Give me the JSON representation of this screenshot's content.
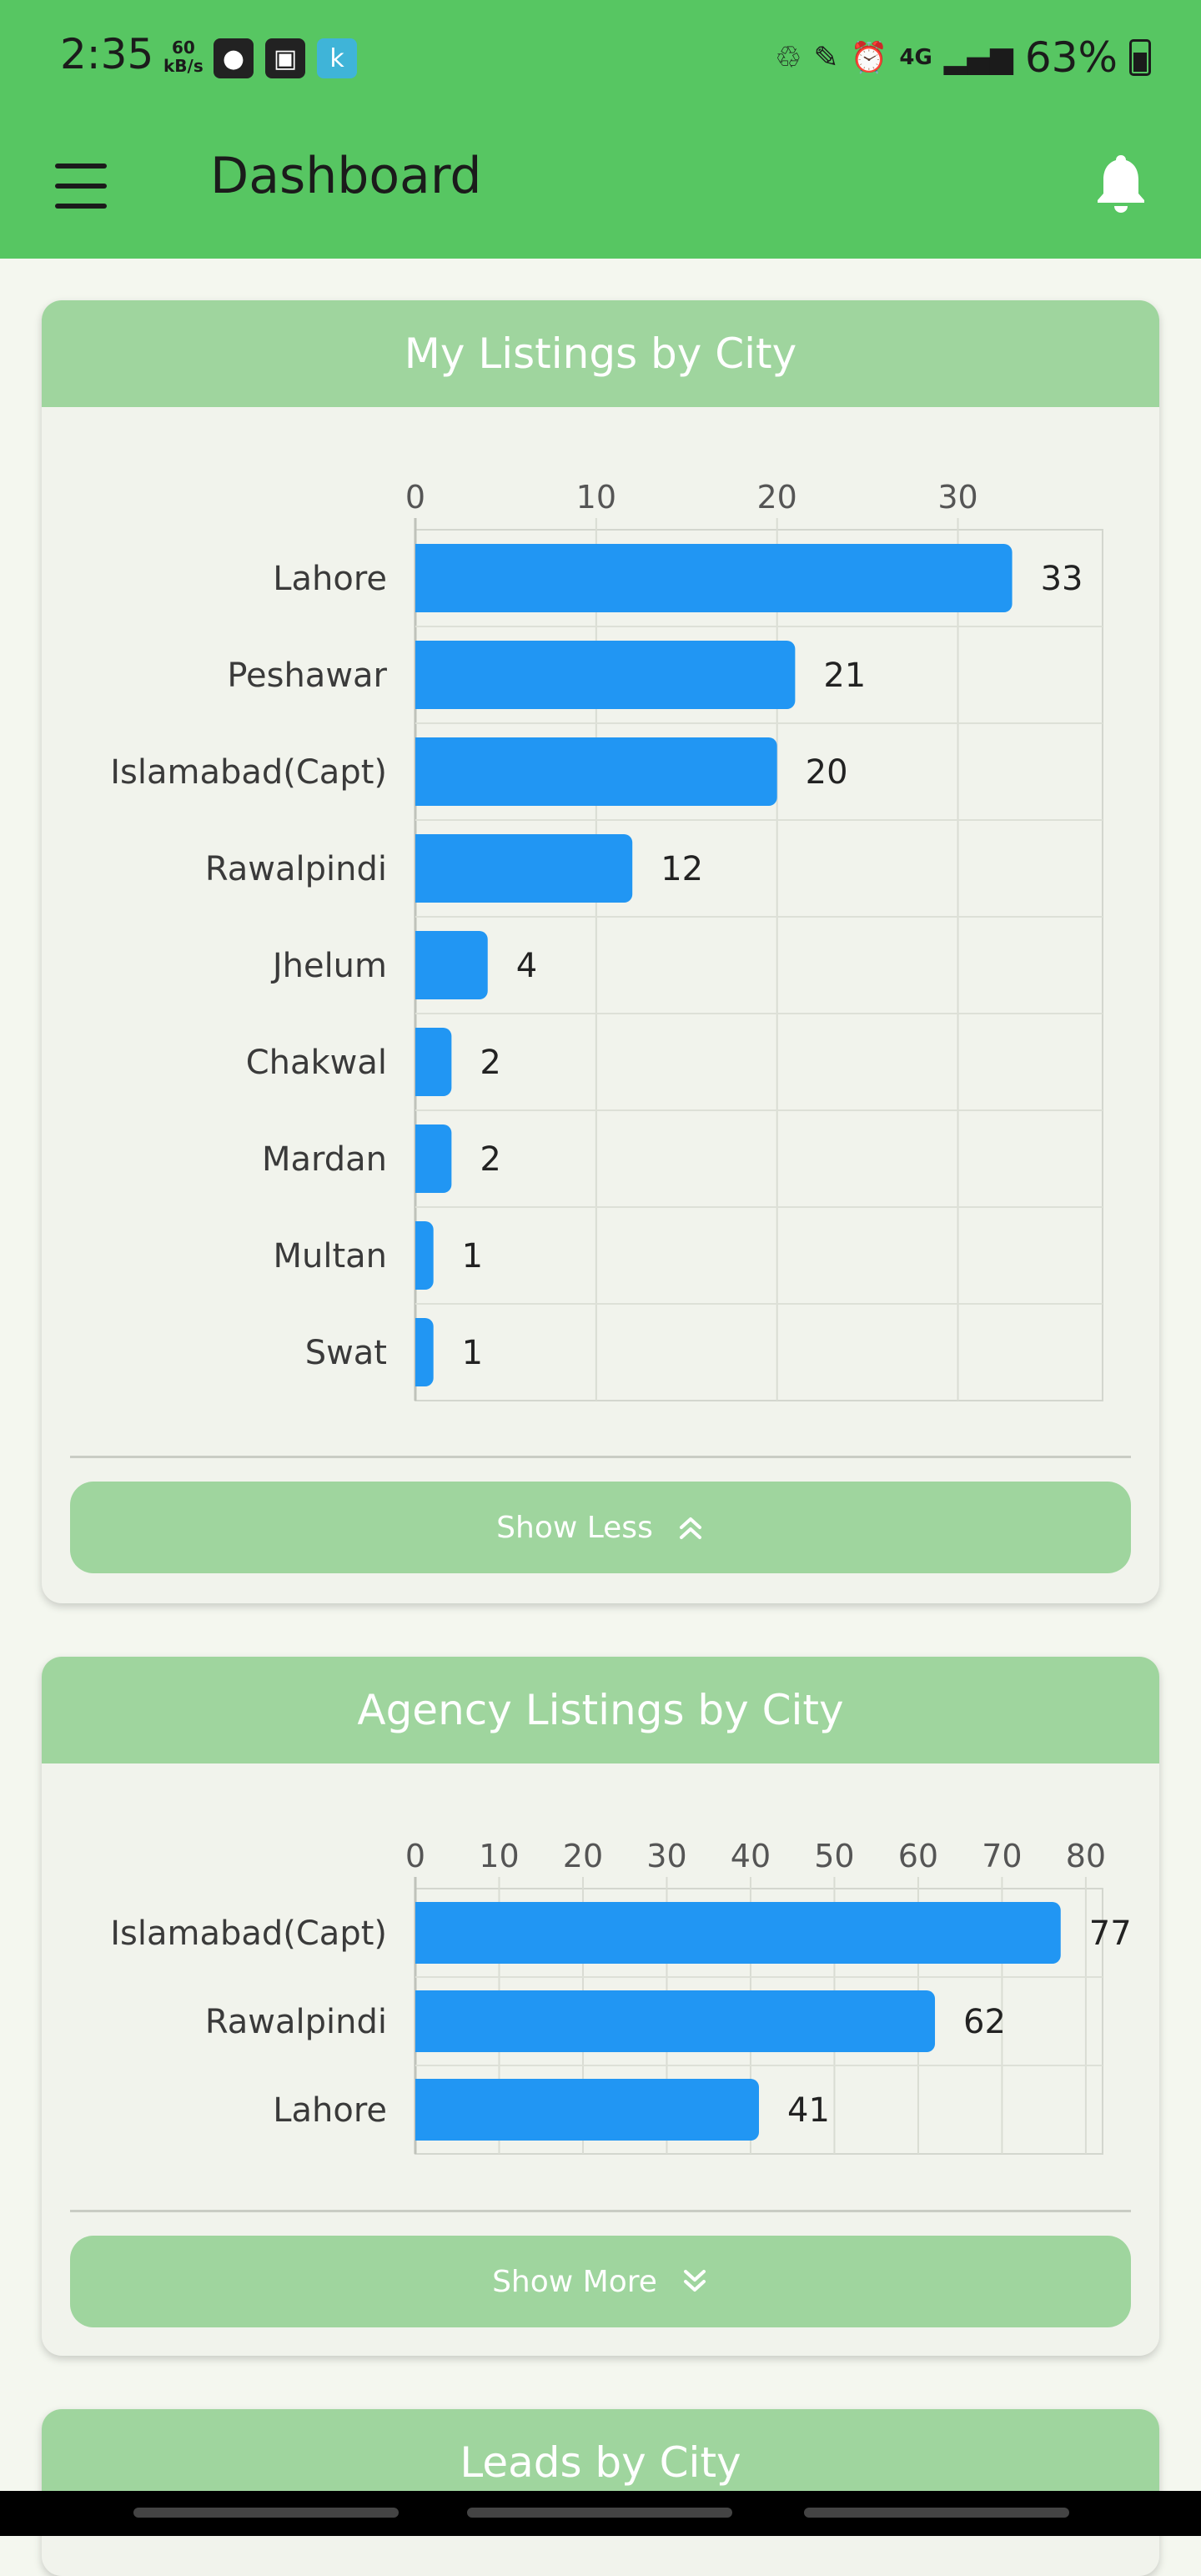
{
  "status_bar": {
    "time": "2:35",
    "speed_value": "60",
    "speed_unit": "kB/s",
    "network": "4G",
    "battery": "63%",
    "icons": [
      "vpn-icon",
      "gallery-icon",
      "app-k-icon",
      "battery-saver-icon",
      "pen-icon",
      "alarm-icon",
      "signal-icon"
    ]
  },
  "app_bar": {
    "title": "Dashboard",
    "menu_icon": "hamburger-menu-icon",
    "bell_icon": "notification-bell-icon"
  },
  "colors": {
    "app_bar": "#57c662",
    "card_header": "#9fd59e",
    "bar": "#2196f3"
  },
  "cards": [
    {
      "title": "My Listings by City",
      "button_label": "Show Less",
      "button_icon": "double-chevron-up-icon"
    },
    {
      "title": "Agency Listings by City",
      "button_label": "Show More",
      "button_icon": "double-chevron-down-icon"
    },
    {
      "title": "Leads by City"
    }
  ],
  "chart_data": [
    {
      "type": "bar",
      "orientation": "horizontal",
      "categories": [
        "Lahore",
        "Peshawar",
        "Islamabad(Capt)",
        "Rawalpindi",
        "Jhelum",
        "Chakwal",
        "Mardan",
        "Multan",
        "Swat"
      ],
      "values": [
        33,
        21,
        20,
        12,
        4,
        2,
        2,
        1,
        1
      ],
      "xticks": [
        0,
        10,
        20,
        30
      ],
      "xlim": [
        0,
        38
      ],
      "grid": true,
      "data_labels": true
    },
    {
      "type": "bar",
      "orientation": "horizontal",
      "categories": [
        "Islamabad(Capt)",
        "Rawalpindi",
        "Lahore"
      ],
      "values": [
        77,
        62,
        41
      ],
      "xticks": [
        0,
        10,
        20,
        30,
        40,
        50,
        60,
        70,
        80
      ],
      "xlim": [
        0,
        82
      ],
      "grid": true,
      "data_labels": true
    }
  ]
}
